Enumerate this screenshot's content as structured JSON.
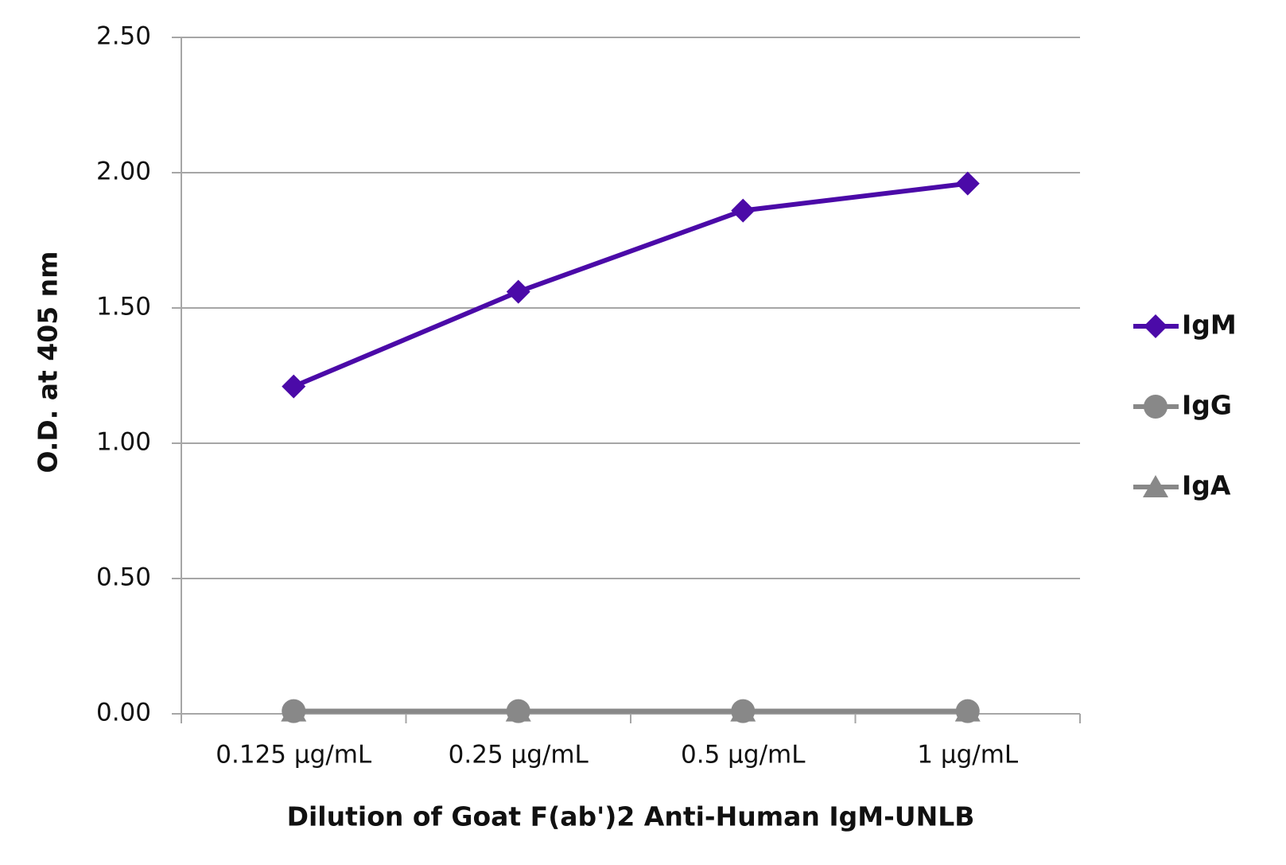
{
  "chart_data": {
    "type": "line",
    "x_label": "Dilution of Goat F(ab')2 Anti-Human IgM-UNLB",
    "y_label": "O.D. at 405 nm",
    "categories": [
      "0.125 µg/mL",
      "0.25 µg/mL",
      "0.5 µg/mL",
      "1 µg/mL"
    ],
    "series": [
      {
        "name": "IgM",
        "color": "#4b0aa8",
        "marker": "diamond",
        "values": [
          1.21,
          1.56,
          1.86,
          1.96
        ]
      },
      {
        "name": "IgG",
        "color": "#888888",
        "marker": "circle",
        "values": [
          0.01,
          0.01,
          0.01,
          0.01
        ]
      },
      {
        "name": "IgA",
        "color": "#888888",
        "marker": "triangle",
        "values": [
          0.01,
          0.01,
          0.01,
          0.01
        ]
      }
    ],
    "ylim": [
      0,
      2.5
    ],
    "yticks": [
      {
        "value": 0,
        "label": "0.00"
      },
      {
        "value": 0.5,
        "label": "0.50"
      },
      {
        "value": 1,
        "label": "1.00"
      },
      {
        "value": 1.5,
        "label": "1.50"
      },
      {
        "value": 2,
        "label": "2.00"
      },
      {
        "value": 2.5,
        "label": "2.50"
      }
    ],
    "grid": true,
    "legend": "right"
  }
}
